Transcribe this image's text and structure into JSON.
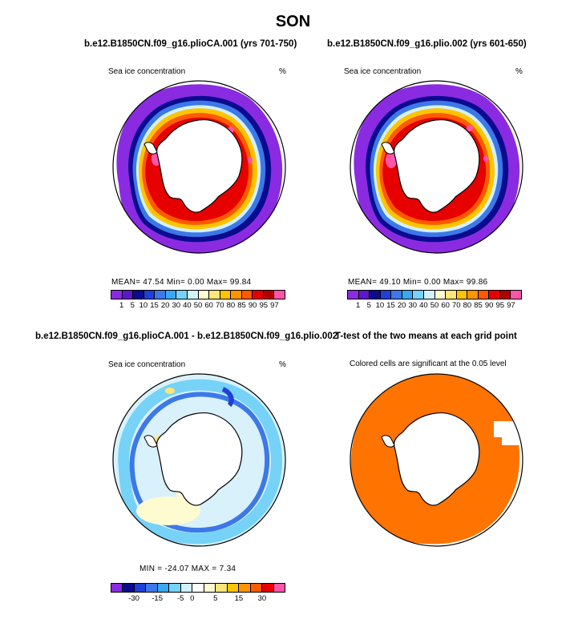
{
  "figure": {
    "title": "SON"
  },
  "panels": {
    "top_left": {
      "title": "b.e12.B1850CN.f09_g16.plioCA.001 (yrs 701-750)",
      "field_label": "Sea ice concentration",
      "units": "%",
      "stats": "MEAN=   47.54   Min=    0.00   Max=   99.84"
    },
    "top_right": {
      "title": "b.e12.B1850CN.f09_g16.plio.002 (yrs 601-650)",
      "field_label": "Sea ice concentration",
      "units": "%",
      "stats": "MEAN=   49.10   Min=    0.00   Max=   99.86"
    },
    "bottom_left": {
      "title": "b.e12.B1850CN.f09_g16.plioCA.001 - b.e12.B1850CN.f09_g16.plio.002",
      "field_label": "Sea ice concentration",
      "units": "%",
      "stats": "MIN = -24.07  MAX =    7.34"
    },
    "bottom_right": {
      "title": "T-test of the two means at each grid point",
      "subtitle": "Colored cells are significant at the 0.05 level"
    }
  },
  "chart_data": [
    {
      "type": "heatmap",
      "projection": "south-polar stereographic",
      "title": "b.e12.B1850CN.f09_g16.plioCA.001 (yrs 701-750)",
      "variable": "Sea ice concentration",
      "units": "%",
      "mean": 47.54,
      "min": 0.0,
      "max": 99.84,
      "colorbar_levels": [
        1,
        5,
        10,
        15,
        20,
        30,
        40,
        50,
        60,
        70,
        80,
        85,
        90,
        95,
        97
      ],
      "colorbar_labels": [
        "1",
        "5",
        "10",
        "15",
        "20",
        "30",
        "40",
        "50",
        "60",
        "70",
        "80",
        "85",
        "90",
        "95",
        "97"
      ],
      "colors": [
        "#8a2be2",
        "#5b17c9",
        "#0b0b8f",
        "#1f3fd6",
        "#3c78e8",
        "#38a8f0",
        "#76d2f7",
        "#d2f1fb",
        "#fffbd0",
        "#ffe57a",
        "#ffc400",
        "#ff9500",
        "#ff5a00",
        "#e60000",
        "#b00000",
        "#ff55a8"
      ]
    },
    {
      "type": "heatmap",
      "projection": "south-polar stereographic",
      "title": "b.e12.B1850CN.f09_g16.plio.002 (yrs 601-650)",
      "variable": "Sea ice concentration",
      "units": "%",
      "mean": 49.1,
      "min": 0.0,
      "max": 99.86,
      "colorbar_levels": [
        1,
        5,
        10,
        15,
        20,
        30,
        40,
        50,
        60,
        70,
        80,
        85,
        90,
        95,
        97
      ],
      "colorbar_labels": [
        "1",
        "5",
        "10",
        "15",
        "20",
        "30",
        "40",
        "50",
        "60",
        "70",
        "80",
        "85",
        "90",
        "95",
        "97"
      ],
      "colors": [
        "#8a2be2",
        "#5b17c9",
        "#0b0b8f",
        "#1f3fd6",
        "#3c78e8",
        "#38a8f0",
        "#76d2f7",
        "#d2f1fb",
        "#fffbd0",
        "#ffe57a",
        "#ffc400",
        "#ff9500",
        "#ff5a00",
        "#e60000",
        "#b00000",
        "#ff55a8"
      ]
    },
    {
      "type": "heatmap",
      "projection": "south-polar stereographic",
      "title": "b.e12.B1850CN.f09_g16.plioCA.001 - b.e12.B1850CN.f09_g16.plio.002",
      "variable": "Sea ice concentration difference",
      "units": "%",
      "min": -24.07,
      "max": 7.34,
      "colorbar_labels": [
        "-30",
        "-15",
        "-5",
        "0",
        "5",
        "15",
        "30"
      ],
      "colors": [
        "#8a2be2",
        "#0b0b8f",
        "#1f3fd6",
        "#3c78e8",
        "#38a8f0",
        "#76d2f7",
        "#d2f1fb",
        "#ffffff",
        "#fffbd0",
        "#ffe57a",
        "#ffc400",
        "#ff9500",
        "#ff5a00",
        "#e60000",
        "#ff55a8"
      ]
    },
    {
      "type": "heatmap",
      "projection": "south-polar stereographic",
      "title": "T-test of the two means at each grid point",
      "subtitle": "Colored cells are significant at the 0.05 level",
      "significant_color": "#ff7300"
    }
  ],
  "colors": {
    "land": "#ffffff",
    "outline": "#000000",
    "significant": "#ff7300"
  }
}
